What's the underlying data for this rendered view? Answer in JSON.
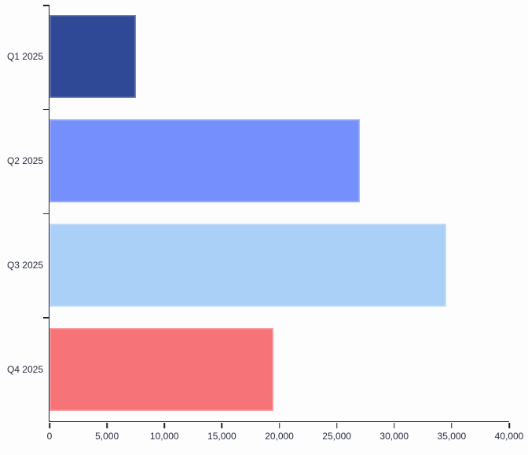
{
  "chart_data": {
    "type": "bar",
    "orientation": "horizontal",
    "title": "",
    "xlabel": "",
    "ylabel": "",
    "categories": [
      "Q1 2025",
      "Q2 2025",
      "Q3 2025",
      "Q4 2025"
    ],
    "values": [
      7500,
      27000,
      34500,
      19500
    ],
    "bar_colors": [
      "#2F4996",
      "#7590FC",
      "#ABD0F8",
      "#F67377"
    ],
    "xlim": [
      0,
      40000
    ],
    "x_ticks": [
      0,
      5000,
      10000,
      15000,
      20000,
      25000,
      30000,
      35000,
      40000
    ],
    "x_tick_labels": [
      "0",
      "5,000",
      "10,000",
      "15,000",
      "20,000",
      "25,000",
      "30,000",
      "35,000",
      "40,000"
    ],
    "grid": false,
    "legend": false,
    "colors": {
      "background": "#FDFDFD",
      "axis": "#1B2030",
      "label_text": "#272C40"
    }
  }
}
